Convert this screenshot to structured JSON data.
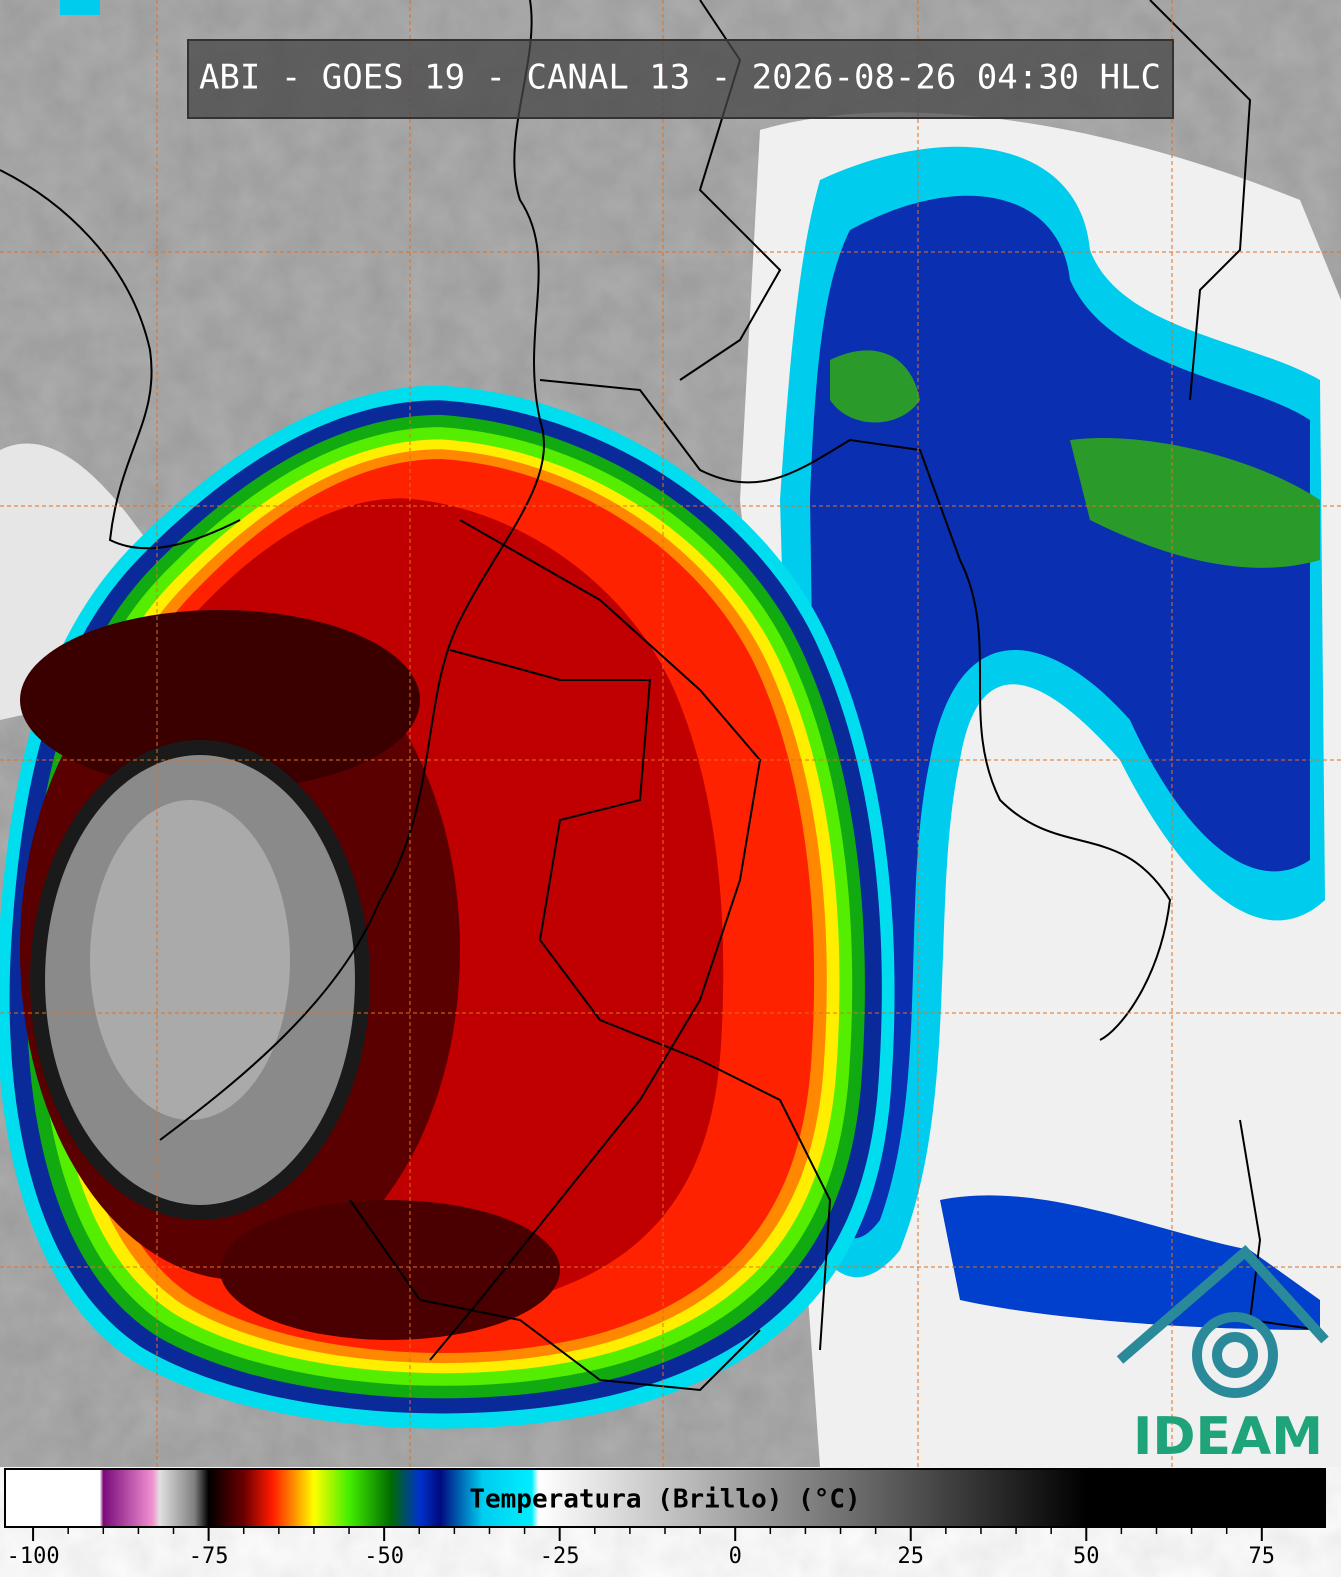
{
  "map": {
    "title": "ABI - GOES 19 - CANAL 13 - 2026-08-26 04:30 HLC",
    "logo": "IDEAM",
    "colorbar": {
      "label": "Temperatura (Brillo) (°C)",
      "lim": [
        -104,
        84
      ],
      "ticks": [
        -100,
        -75,
        -50,
        -25,
        0,
        25,
        50,
        75
      ],
      "stops": [
        {
          "value": -104,
          "color": "#ffffff"
        },
        {
          "value": -90.5,
          "color": "#ffffff"
        },
        {
          "value": -90,
          "color": "#7a0a7a"
        },
        {
          "value": -83,
          "color": "#f090d0"
        },
        {
          "value": -82,
          "color": "#e0e0e0"
        },
        {
          "value": -77,
          "color": "#808080"
        },
        {
          "value": -75,
          "color": "#000000"
        },
        {
          "value": -70,
          "color": "#6a0000"
        },
        {
          "value": -66,
          "color": "#ff1a00"
        },
        {
          "value": -63,
          "color": "#ff8800"
        },
        {
          "value": -60,
          "color": "#ffff00"
        },
        {
          "value": -55,
          "color": "#44ee00"
        },
        {
          "value": -49,
          "color": "#006a00"
        },
        {
          "value": -45,
          "color": "#0033cc"
        },
        {
          "value": -42,
          "color": "#000a80"
        },
        {
          "value": -36,
          "color": "#00ccee"
        },
        {
          "value": -29,
          "color": "#00eeff"
        },
        {
          "value": -28,
          "color": "#ffffff"
        },
        {
          "value": 50,
          "color": "#000000"
        },
        {
          "value": 84,
          "color": "#000000"
        }
      ]
    }
  }
}
